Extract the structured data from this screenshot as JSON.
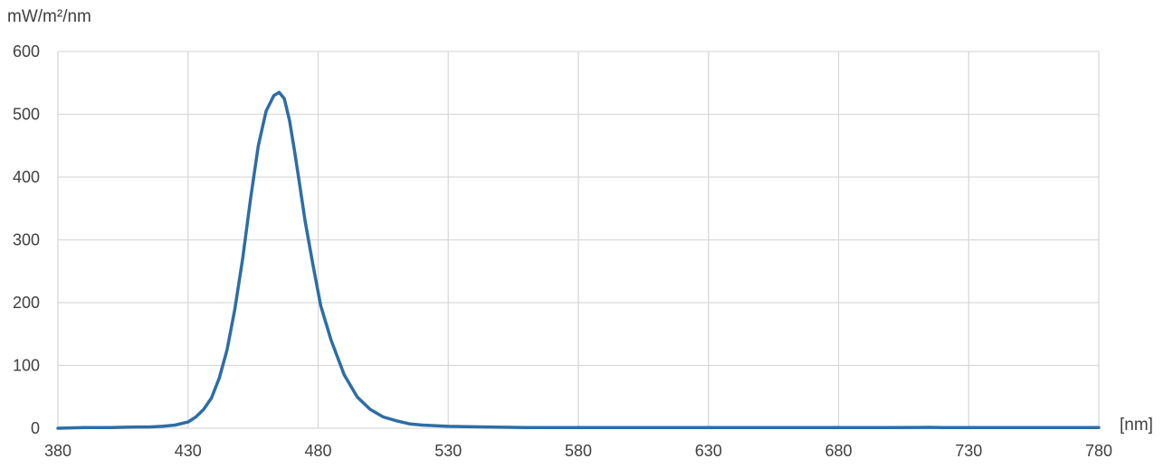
{
  "chart_data": {
    "type": "line",
    "title": "",
    "ylabel": "mW/m²/nm",
    "xlabel": "[nm]",
    "xlim": [
      380,
      780
    ],
    "ylim": [
      0,
      600
    ],
    "x_ticks": [
      380,
      430,
      480,
      530,
      580,
      630,
      680,
      730,
      780
    ],
    "y_ticks": [
      0,
      100,
      200,
      300,
      400,
      500,
      600
    ],
    "grid": true,
    "legend": "none",
    "series": [
      {
        "color": "#2e6da4",
        "points": [
          [
            380,
            0
          ],
          [
            390,
            1
          ],
          [
            400,
            1
          ],
          [
            410,
            2
          ],
          [
            415,
            2
          ],
          [
            420,
            3
          ],
          [
            425,
            5
          ],
          [
            430,
            10
          ],
          [
            433,
            18
          ],
          [
            436,
            30
          ],
          [
            439,
            48
          ],
          [
            442,
            80
          ],
          [
            445,
            125
          ],
          [
            448,
            190
          ],
          [
            451,
            270
          ],
          [
            454,
            365
          ],
          [
            457,
            450
          ],
          [
            460,
            505
          ],
          [
            463,
            530
          ],
          [
            465,
            535
          ],
          [
            467,
            525
          ],
          [
            469,
            490
          ],
          [
            471,
            440
          ],
          [
            473,
            385
          ],
          [
            475,
            330
          ],
          [
            478,
            260
          ],
          [
            481,
            195
          ],
          [
            485,
            140
          ],
          [
            490,
            85
          ],
          [
            495,
            50
          ],
          [
            500,
            30
          ],
          [
            505,
            18
          ],
          [
            510,
            12
          ],
          [
            515,
            7
          ],
          [
            520,
            5
          ],
          [
            530,
            3
          ],
          [
            545,
            2
          ],
          [
            560,
            1
          ],
          [
            600,
            1
          ],
          [
            650,
            1
          ],
          [
            700,
            1
          ],
          [
            715,
            1.5
          ],
          [
            720,
            1
          ],
          [
            760,
            1
          ],
          [
            780,
            1
          ]
        ]
      }
    ]
  }
}
